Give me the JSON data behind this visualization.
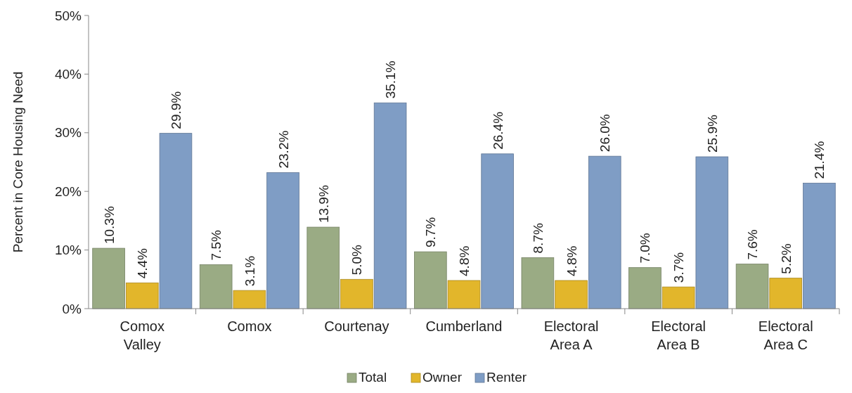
{
  "chart_data": {
    "type": "bar",
    "ylabel": "Percent in Core Housing Need",
    "categories": [
      "Comox Valley",
      "Comox",
      "Courtenay",
      "Cumberland",
      "Electoral Area A",
      "Electoral Area B",
      "Electoral Area C"
    ],
    "series": [
      {
        "name": "Total",
        "color": "#9aab84",
        "values": [
          10.3,
          7.5,
          13.9,
          9.7,
          8.7,
          7.0,
          7.6
        ],
        "value_labels": [
          "10.3%",
          "7.5%",
          "13.9%",
          "9.7%",
          "8.7%",
          "7.0%",
          "7.6%"
        ]
      },
      {
        "name": "Owner",
        "color": "#e2b62b",
        "values": [
          4.4,
          3.1,
          5.0,
          4.8,
          4.8,
          3.7,
          5.2
        ],
        "value_labels": [
          "4.4%",
          "3.1%",
          "5.0%",
          "4.8%",
          "4.8%",
          "3.7%",
          "5.2%"
        ]
      },
      {
        "name": "Renter",
        "color": "#7f9dc5",
        "values": [
          29.9,
          23.2,
          35.1,
          26.4,
          26.0,
          25.9,
          21.4
        ],
        "value_labels": [
          "29.9%",
          "23.2%",
          "35.1%",
          "26.4%",
          "26.0%",
          "25.9%",
          "21.4%"
        ]
      }
    ],
    "ylim": [
      0,
      50
    ],
    "yticks": [
      {
        "value": 0,
        "label": "0%"
      },
      {
        "value": 10,
        "label": "10%"
      },
      {
        "value": 20,
        "label": "20%"
      },
      {
        "value": 30,
        "label": "30%"
      },
      {
        "value": 40,
        "label": "40%"
      },
      {
        "value": 50,
        "label": "50%"
      }
    ],
    "legend": "bottom"
  }
}
